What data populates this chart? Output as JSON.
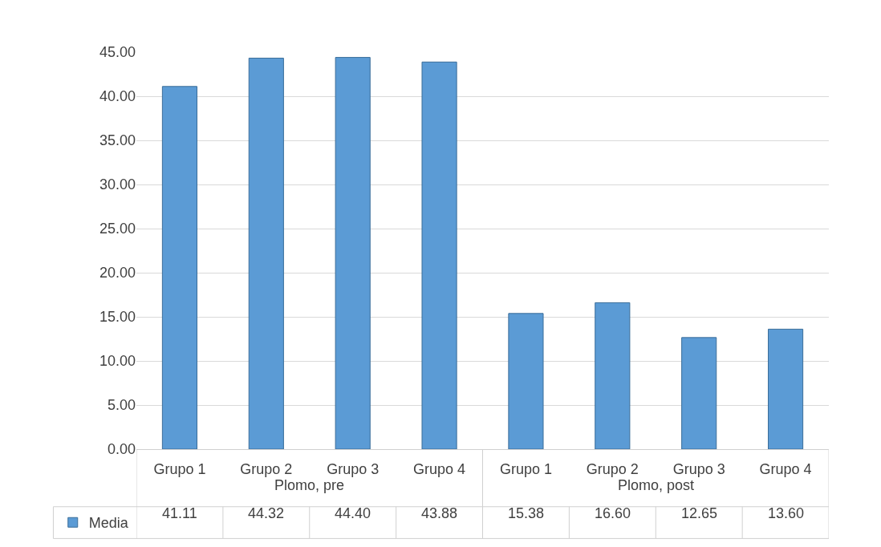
{
  "chart_data": {
    "type": "bar",
    "categories": [
      "Grupo 1",
      "Grupo 2",
      "Grupo 3",
      "Grupo 4",
      "Grupo 1",
      "Grupo 2",
      "Grupo 3",
      "Grupo 4"
    ],
    "series": [
      {
        "name": "Media",
        "color": "#5b9bd5",
        "values": [
          41.11,
          44.32,
          44.4,
          43.88,
          15.38,
          16.6,
          12.65,
          13.6
        ],
        "value_labels": [
          "41.11",
          "44.32",
          "44.40",
          "43.88",
          "15.38",
          "16.60",
          "12.65",
          "13.60"
        ]
      }
    ],
    "annotations": [
      "Plomo, pre",
      "Plomo, post"
    ],
    "ylim": [
      0,
      45
    ],
    "yticks": [
      {
        "value": 0,
        "label": "0.00"
      },
      {
        "value": 5,
        "label": "5.00"
      },
      {
        "value": 10,
        "label": "10.00"
      },
      {
        "value": 15,
        "label": "15.00"
      },
      {
        "value": 20,
        "label": "20.00"
      },
      {
        "value": 25,
        "label": "25.00"
      },
      {
        "value": 30,
        "label": "30.00"
      },
      {
        "value": 35,
        "label": "35.00"
      },
      {
        "value": 40,
        "label": "40.00"
      },
      {
        "value": 45,
        "label": "45.00"
      }
    ],
    "grid": "y",
    "legend": "bottom left"
  }
}
